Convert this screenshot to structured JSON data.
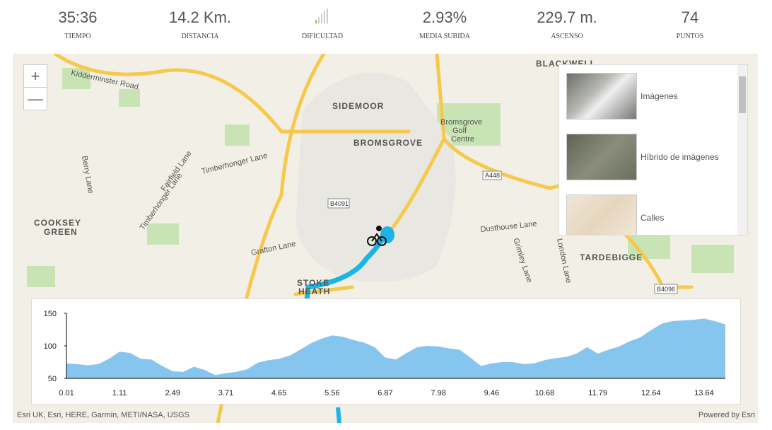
{
  "stats": [
    {
      "value": "35:36",
      "label": "TIEMPO"
    },
    {
      "value": "14.2 Km.",
      "label": "DISTANCIA"
    },
    {
      "label": "DIFICULTAD"
    },
    {
      "value": "2.93%",
      "label": "MEDIA SUBIDA"
    },
    {
      "value": "229.7 m.",
      "label": "ASCENSO"
    },
    {
      "value": "74",
      "label": "PUNTOS"
    }
  ],
  "map": {
    "zoom_in": "+",
    "zoom_out": "—",
    "labels": [
      "Kidderminster Road",
      "SIDEMOOR",
      "BROMSGROVE",
      "Bromsgrove",
      "Golf",
      "Centre",
      "BLACKWELL",
      "Timberhonger Lane",
      "Berry Lane",
      "COOKSEY",
      "GREEN",
      "Grafton Lane",
      "Dusthouse Lane",
      "TARDEBIGGE",
      "STOKE",
      "HEATH",
      "B4091",
      "A448",
      "B4096",
      "Grimley Lane",
      "London Lane",
      "Timberhonger Lane",
      "Fairfield Lane"
    ],
    "basemaps": [
      "Imágenes",
      "Híbrido de imágenes",
      "Calles"
    ],
    "attribution": "Esri UK, Esri, HERE, Garmin, METI/NASA, USGS",
    "powered_by": "Powered by Esri"
  },
  "chart_data": {
    "type": "area",
    "color": "#86c5ee",
    "categories": [
      "0.01",
      null,
      null,
      null,
      null,
      "1.11",
      null,
      null,
      null,
      null,
      "2.49",
      null,
      null,
      null,
      null,
      "3.71",
      null,
      null,
      null,
      null,
      "4.65",
      null,
      null,
      null,
      null,
      "5.56",
      null,
      null,
      null,
      null,
      "6.87",
      null,
      null,
      null,
      null,
      "7.98",
      null,
      null,
      null,
      null,
      "9.46",
      null,
      null,
      null,
      null,
      "10.68",
      null,
      null,
      null,
      null,
      "11.79",
      null,
      null,
      null,
      null,
      "12.64",
      null,
      null,
      null,
      null,
      "13.64",
      null,
      null
    ],
    "values": [
      73,
      72,
      70,
      72,
      80,
      91,
      89,
      80,
      79,
      69,
      61,
      60,
      68,
      63,
      55,
      58,
      60,
      64,
      74,
      78,
      80,
      85,
      94,
      104,
      111,
      116,
      114,
      109,
      105,
      98,
      82,
      79,
      89,
      98,
      100,
      99,
      96,
      94,
      82,
      69,
      73,
      75,
      75,
      72,
      73,
      78,
      81,
      83,
      88,
      98,
      88,
      94,
      99,
      107,
      113,
      124,
      134,
      138,
      139,
      140,
      142,
      138,
      133
    ],
    "ylim": [
      50,
      150
    ],
    "yticks": [
      50,
      100,
      150
    ]
  }
}
